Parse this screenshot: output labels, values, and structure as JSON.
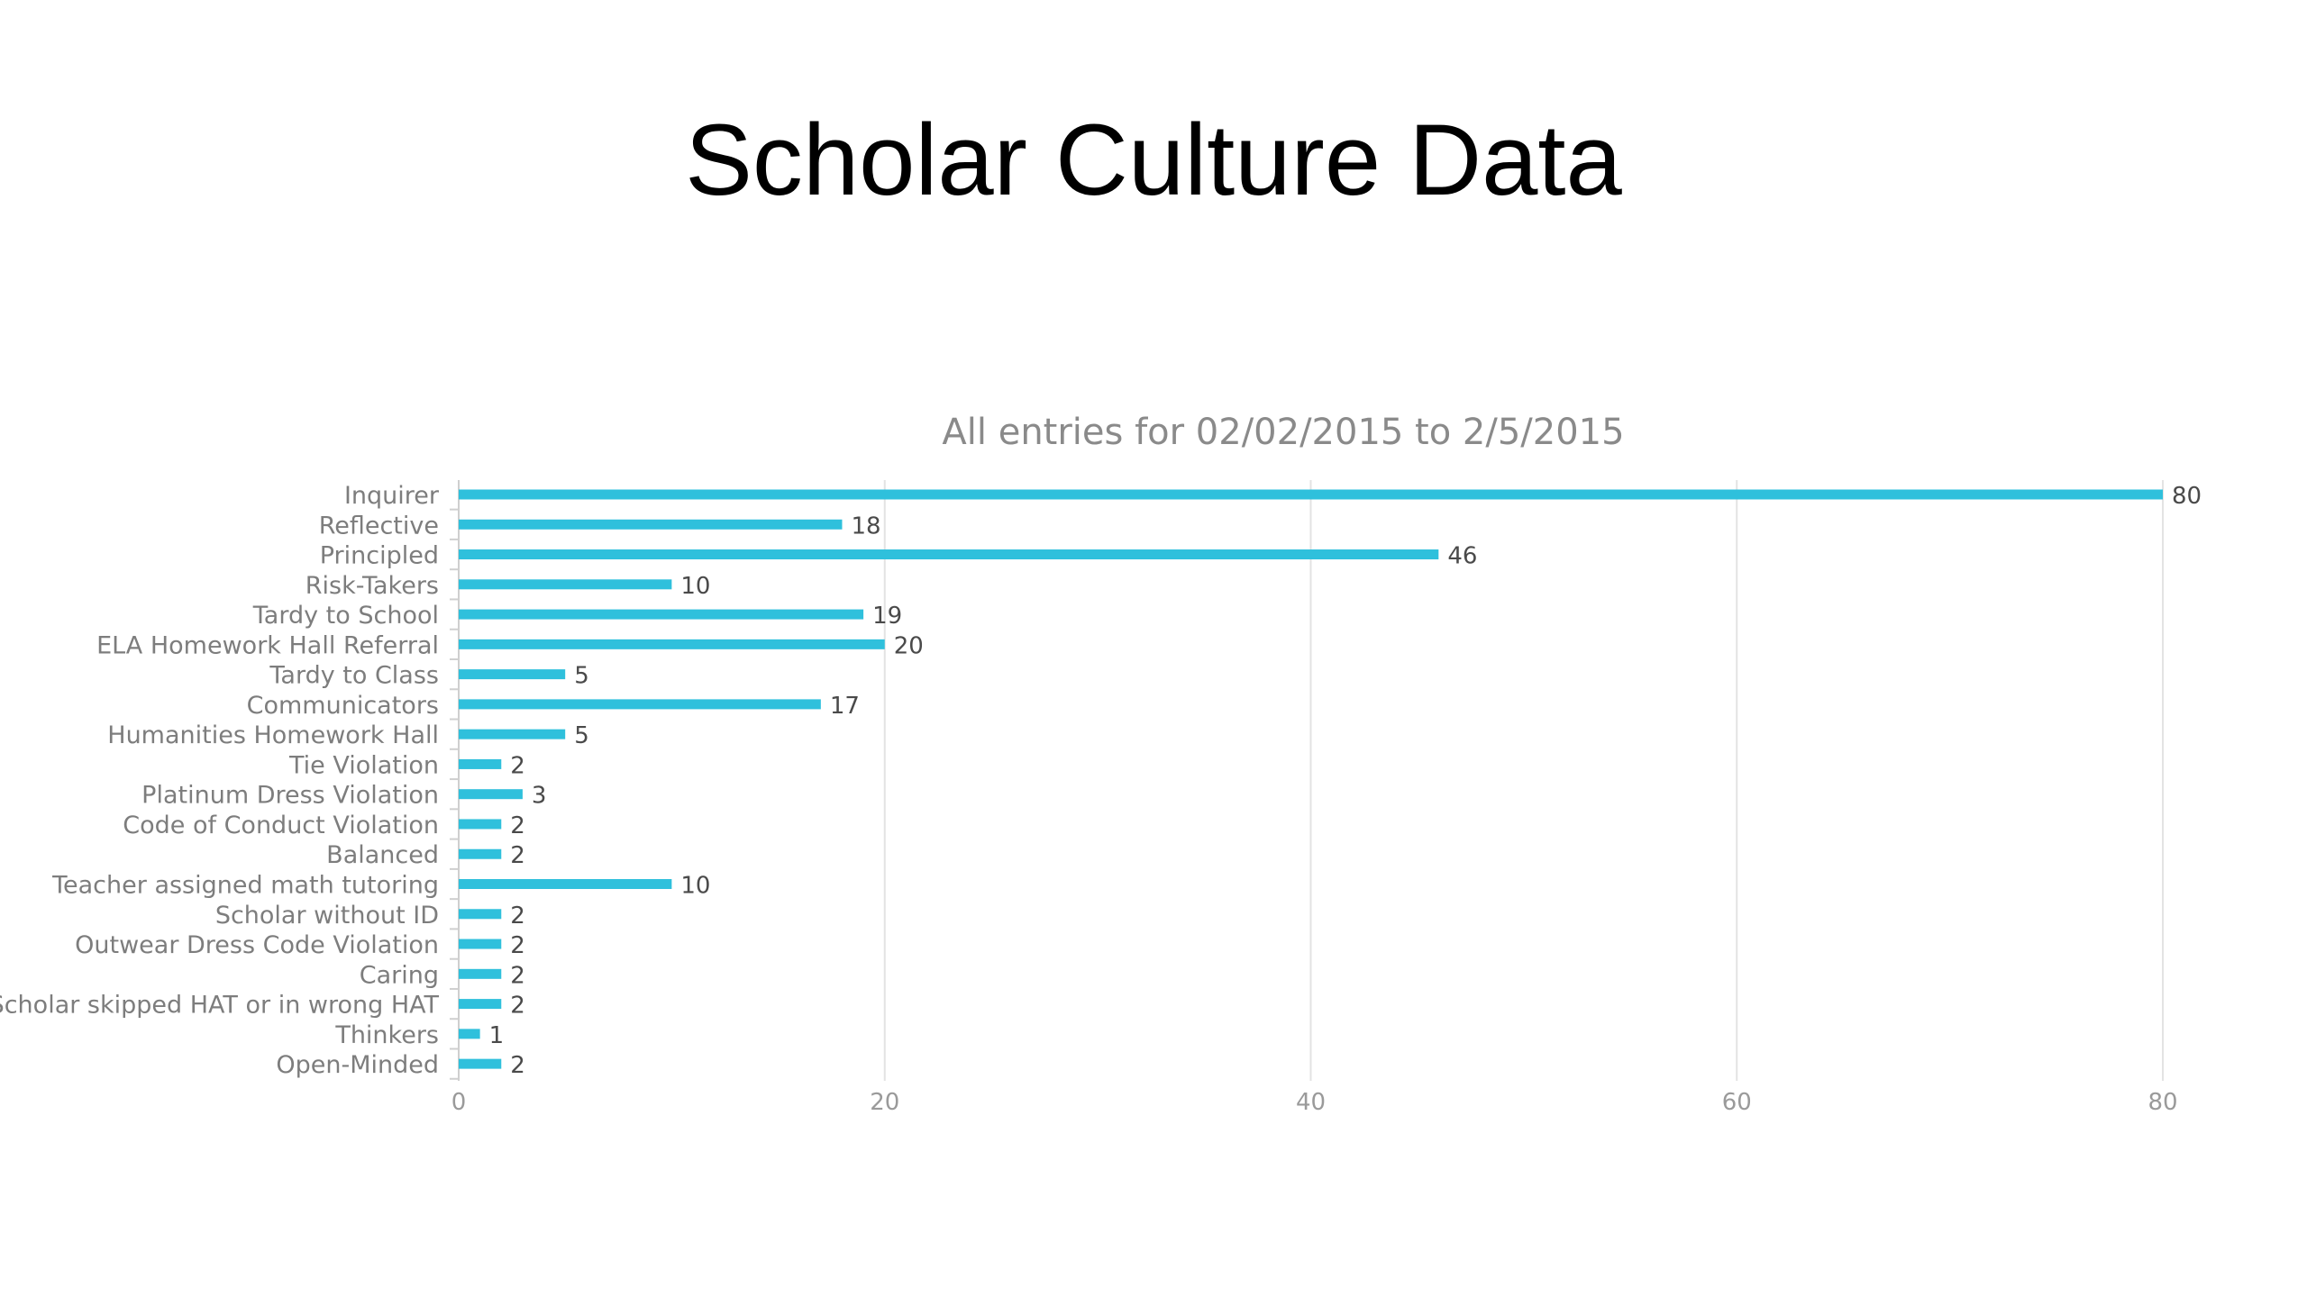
{
  "slide": {
    "title": "Scholar Culture Data"
  },
  "chart_data": {
    "type": "bar",
    "orientation": "horizontal",
    "title": "All entries for 02/02/2015 to 2/5/2015",
    "categories": [
      "Inquirer",
      "Reflective",
      "Principled",
      "Risk-Takers",
      "Tardy to School",
      "ELA Homework Hall Referral",
      "Tardy to Class",
      "Communicators",
      "Humanities Homework Hall",
      "Tie Violation",
      "Platinum Dress Violation",
      "Code of Conduct Violation",
      "Balanced",
      "Teacher assigned math tutoring",
      "Scholar without ID",
      "Outwear Dress Code Violation",
      "Caring",
      "Scholar skipped HAT or in wrong HAT",
      "Thinkers",
      "Open-Minded"
    ],
    "values": [
      80,
      18,
      46,
      10,
      19,
      20,
      5,
      17,
      5,
      2,
      3,
      2,
      2,
      10,
      2,
      2,
      2,
      2,
      1,
      2
    ],
    "xlim": [
      0,
      80
    ],
    "xticks": [
      0,
      20,
      40,
      60,
      80
    ],
    "grid": true,
    "data_labels": true,
    "colors": {
      "bar": "#2fc0dc",
      "grid": "#e3e3e3",
      "axis": "#cfcfcf"
    }
  }
}
